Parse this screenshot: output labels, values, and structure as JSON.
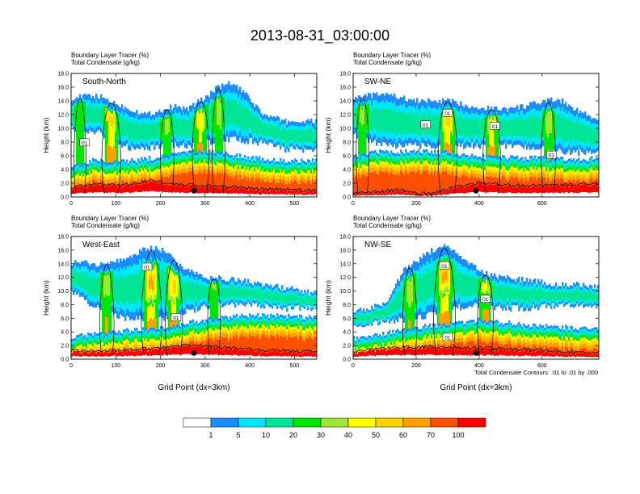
{
  "title": "2013-08-31_03:00:00",
  "footnote": "Total Condensate Contours: .01 to .01 by .000",
  "colors": {
    "bands": [
      "#ffffff",
      "#1e8cff",
      "#00e6ff",
      "#00e696",
      "#00e600",
      "#a0e632",
      "#ffff00",
      "#ffd200",
      "#ffa000",
      "#ff5000",
      "#ff0000"
    ]
  },
  "colorbar": {
    "labels": [
      "1",
      "5",
      "10",
      "20",
      "30",
      "40",
      "50",
      "60",
      "70",
      "100"
    ]
  },
  "chart_data": [
    {
      "type": "heatmap",
      "panel": "South-North",
      "subtitle_line1": "Boundary Layer Tracer   (%)",
      "subtitle_line2": "Total Condensate   (g/kg)",
      "ylabel": "Height (km)",
      "xlabel": "",
      "ylim": [
        0,
        18
      ],
      "xlim": [
        0,
        550
      ],
      "yticks": [
        "0.0",
        "2.0",
        "4.0",
        "6.0",
        "8.0",
        "10.0",
        "12.0",
        "14.0",
        "16.0",
        "18.0"
      ],
      "xticks": [
        0,
        100,
        200,
        300,
        400,
        500
      ],
      "contour_label": "01",
      "contour_label_positions": [
        [
          30,
          7.9
        ]
      ],
      "marker_x": 275,
      "profile": {
        "top": [
          [
            0,
            14.3
          ],
          [
            40,
            14.8
          ],
          [
            70,
            14.5
          ],
          [
            110,
            13.3
          ],
          [
            170,
            12.0
          ],
          [
            230,
            13.2
          ],
          [
            260,
            12.8
          ],
          [
            300,
            14.5
          ],
          [
            330,
            16.0
          ],
          [
            360,
            16.6
          ],
          [
            390,
            15.0
          ],
          [
            430,
            12.0
          ],
          [
            480,
            11.0
          ],
          [
            550,
            11.0
          ]
        ],
        "base": [
          [
            0,
            10.0
          ],
          [
            60,
            9.5
          ],
          [
            110,
            7.5
          ],
          [
            150,
            7.0
          ],
          [
            200,
            7.5
          ],
          [
            260,
            7.5
          ],
          [
            300,
            8.0
          ],
          [
            360,
            8.5
          ],
          [
            420,
            8.0
          ],
          [
            480,
            7.0
          ],
          [
            550,
            6.8
          ]
        ],
        "bl": [
          [
            0,
            3.8
          ],
          [
            50,
            4.6
          ],
          [
            100,
            4.4
          ],
          [
            150,
            4.7
          ],
          [
            200,
            5.1
          ],
          [
            250,
            5.7
          ],
          [
            300,
            6.0
          ],
          [
            350,
            5.6
          ],
          [
            400,
            5.0
          ],
          [
            450,
            4.8
          ],
          [
            500,
            4.5
          ],
          [
            550,
            4.6
          ]
        ],
        "terrain": [
          [
            0,
            1.2
          ],
          [
            60,
            1.6
          ],
          [
            120,
            1.5
          ],
          [
            180,
            2.2
          ],
          [
            240,
            1.6
          ],
          [
            300,
            1.4
          ],
          [
            360,
            1.2
          ],
          [
            420,
            0.9
          ],
          [
            480,
            0.8
          ],
          [
            550,
            0.7
          ]
        ]
      },
      "hotspots": [
        [
          20,
          0.35
        ],
        [
          90,
          0.8
        ],
        [
          215,
          0.45
        ],
        [
          290,
          0.65
        ],
        [
          330,
          0.4
        ]
      ]
    },
    {
      "type": "heatmap",
      "panel": "SW-NE",
      "subtitle_line1": "Boundary Layer Tracer   (%)",
      "subtitle_line2": "Total Condensate   (g/kg)",
      "ylabel": "Height (km)",
      "xlabel": "",
      "ylim": [
        0,
        18
      ],
      "xlim": [
        0,
        780
      ],
      "yticks": [
        "0.0",
        "2.0",
        "4.0",
        "6.0",
        "8.0",
        "10.0",
        "12.0",
        "14.0",
        "16.0",
        "18.0"
      ],
      "xticks": [
        0,
        200,
        400,
        600
      ],
      "contour_label": "01",
      "contour_label_positions": [
        [
          230,
          10.5
        ],
        [
          300,
          12.2
        ],
        [
          450,
          10.3
        ],
        [
          630,
          6.1
        ]
      ],
      "marker_x": 390,
      "profile": {
        "top": [
          [
            0,
            14.5
          ],
          [
            100,
            15.0
          ],
          [
            200,
            14.0
          ],
          [
            300,
            14.0
          ],
          [
            400,
            13.0
          ],
          [
            500,
            12.8
          ],
          [
            600,
            13.8
          ],
          [
            650,
            14.3
          ],
          [
            700,
            13.0
          ],
          [
            780,
            11.0
          ]
        ],
        "base": [
          [
            0,
            9.0
          ],
          [
            100,
            7.5
          ],
          [
            200,
            7.5
          ],
          [
            300,
            7.5
          ],
          [
            400,
            7.5
          ],
          [
            500,
            7.5
          ],
          [
            600,
            7.0
          ],
          [
            700,
            6.5
          ],
          [
            780,
            6.5
          ]
        ],
        "bl": [
          [
            0,
            5.4
          ],
          [
            100,
            5.9
          ],
          [
            200,
            6.0
          ],
          [
            300,
            5.8
          ],
          [
            400,
            5.2
          ],
          [
            500,
            5.0
          ],
          [
            600,
            5.0
          ],
          [
            700,
            4.8
          ],
          [
            780,
            4.9
          ]
        ],
        "terrain": [
          [
            0,
            0.3
          ],
          [
            80,
            0.5
          ],
          [
            150,
            0.8
          ],
          [
            200,
            0.4
          ],
          [
            250,
            0.2
          ],
          [
            300,
            1.0
          ],
          [
            400,
            1.8
          ],
          [
            500,
            1.5
          ],
          [
            600,
            1.4
          ],
          [
            700,
            1.6
          ],
          [
            780,
            1.6
          ]
        ]
      },
      "hotspots": [
        [
          30,
          0.4
        ],
        [
          300,
          0.8
        ],
        [
          440,
          0.7
        ],
        [
          620,
          0.5
        ]
      ]
    },
    {
      "type": "heatmap",
      "panel": "West-East",
      "subtitle_line1": "Boundary Layer Tracer   (%)",
      "subtitle_line2": "Total Condensate   (g/kg)",
      "ylabel": "Height (km)",
      "xlabel": "Grid Point (dx=3km)",
      "ylim": [
        0,
        18
      ],
      "xlim": [
        0,
        550
      ],
      "yticks": [
        "0.0",
        "2.0",
        "4.0",
        "6.0",
        "8.0",
        "10.0",
        "12.0",
        "14.0",
        "16.0",
        "18.0"
      ],
      "xticks": [
        0,
        100,
        200,
        300,
        400,
        500
      ],
      "contour_label": "01",
      "contour_label_positions": [
        [
          170,
          13.5
        ],
        [
          235,
          6.1
        ]
      ],
      "marker_x": 275,
      "profile": {
        "top": [
          [
            0,
            14.2
          ],
          [
            60,
            14.0
          ],
          [
            120,
            14.5
          ],
          [
            170,
            16.3
          ],
          [
            210,
            16.0
          ],
          [
            250,
            13.5
          ],
          [
            300,
            12.0
          ],
          [
            360,
            11.8
          ],
          [
            420,
            11.0
          ],
          [
            480,
            10.5
          ],
          [
            550,
            9.5
          ]
        ],
        "base": [
          [
            0,
            10.0
          ],
          [
            60,
            7.5
          ],
          [
            120,
            6.0
          ],
          [
            200,
            6.0
          ],
          [
            260,
            7.0
          ],
          [
            320,
            8.0
          ],
          [
            400,
            8.0
          ],
          [
            480,
            7.5
          ],
          [
            550,
            7.5
          ]
        ],
        "bl": [
          [
            0,
            2.6
          ],
          [
            60,
            3.0
          ],
          [
            120,
            3.5
          ],
          [
            180,
            3.8
          ],
          [
            240,
            4.3
          ],
          [
            300,
            5.1
          ],
          [
            350,
            5.5
          ],
          [
            420,
            5.7
          ],
          [
            480,
            5.6
          ],
          [
            550,
            5.4
          ]
        ],
        "terrain": [
          [
            0,
            1.0
          ],
          [
            50,
            1.0
          ],
          [
            100,
            1.1
          ],
          [
            150,
            1.2
          ],
          [
            200,
            1.4
          ],
          [
            250,
            1.8
          ],
          [
            300,
            1.7
          ],
          [
            350,
            1.5
          ],
          [
            400,
            1.2
          ],
          [
            450,
            1.0
          ],
          [
            500,
            0.9
          ],
          [
            550,
            0.9
          ]
        ]
      },
      "hotspots": [
        [
          80,
          0.5
        ],
        [
          180,
          0.9
        ],
        [
          230,
          0.7
        ],
        [
          320,
          0.4
        ]
      ]
    },
    {
      "type": "heatmap",
      "panel": "NW-SE",
      "subtitle_line1": "Boundary Layer Tracer   (%)",
      "subtitle_line2": "Total Condensate   (g/kg)",
      "ylabel": "Height (km)",
      "xlabel": "Grid Point (dx=3km)",
      "ylim": [
        0,
        18
      ],
      "xlim": [
        0,
        780
      ],
      "yticks": [
        "0.0",
        "2.0",
        "4.0",
        "6.0",
        "8.0",
        "10.0",
        "12.0",
        "14.0",
        "16.0",
        "18.0"
      ],
      "xticks": [
        0,
        200,
        400,
        600
      ],
      "contour_label": "01",
      "contour_label_positions": [
        [
          290,
          13.7
        ],
        [
          300,
          3.2
        ],
        [
          420,
          8.8
        ]
      ],
      "marker_x": 390,
      "profile": {
        "top": [
          [
            0,
            7.0
          ],
          [
            100,
            8.0
          ],
          [
            160,
            13.0
          ],
          [
            220,
            15.0
          ],
          [
            270,
            16.5
          ],
          [
            300,
            16.5
          ],
          [
            350,
            14.5
          ],
          [
            420,
            12.5
          ],
          [
            480,
            12.0
          ],
          [
            560,
            11.6
          ],
          [
            640,
            11.0
          ],
          [
            700,
            11.0
          ],
          [
            780,
            10.5
          ]
        ],
        "base": [
          [
            0,
            5.0
          ],
          [
            100,
            5.5
          ],
          [
            200,
            6.0
          ],
          [
            300,
            7.5
          ],
          [
            400,
            8.0
          ],
          [
            480,
            7.5
          ],
          [
            560,
            7.5
          ],
          [
            660,
            8.0
          ],
          [
            780,
            8.0
          ]
        ],
        "bl": [
          [
            0,
            2.3
          ],
          [
            100,
            3.0
          ],
          [
            200,
            4.0
          ],
          [
            300,
            4.5
          ],
          [
            400,
            5.0
          ],
          [
            500,
            4.6
          ],
          [
            600,
            4.1
          ],
          [
            700,
            3.9
          ],
          [
            780,
            3.7
          ]
        ],
        "terrain": [
          [
            0,
            0.9
          ],
          [
            100,
            1.4
          ],
          [
            200,
            1.6
          ],
          [
            300,
            1.5
          ],
          [
            400,
            1.4
          ],
          [
            500,
            1.2
          ],
          [
            600,
            1.1
          ],
          [
            700,
            0.8
          ],
          [
            780,
            0.7
          ]
        ]
      },
      "hotspots": [
        [
          180,
          0.5
        ],
        [
          290,
          1.0
        ],
        [
          420,
          0.6
        ]
      ]
    }
  ]
}
